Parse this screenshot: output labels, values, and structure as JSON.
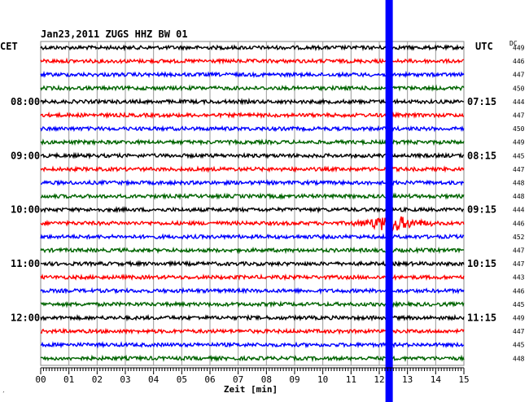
{
  "chart_data": {
    "type": "line",
    "title": "Jan23,2011   ZUGS HHZ BW 01",
    "left_zone": "CET",
    "right_zone": "UTC",
    "dc_header": "DC",
    "xlabel": "Zeit [min]",
    "x_ticks": [
      "00",
      "01",
      "02",
      "03",
      "04",
      "05",
      "06",
      "07",
      "08",
      "09",
      "10",
      "11",
      "12",
      "13",
      "14",
      "15"
    ],
    "xlim": [
      0,
      15
    ],
    "trace_colors": [
      "#000000",
      "#ff0000",
      "#0000ff",
      "#006400"
    ],
    "left_labels": [
      {
        "row": 4,
        "text": "08:00"
      },
      {
        "row": 8,
        "text": "09:00"
      },
      {
        "row": 12,
        "text": "10:00"
      },
      {
        "row": 16,
        "text": "11:00"
      },
      {
        "row": 20,
        "text": "12:00"
      }
    ],
    "right_labels": [
      {
        "row": 4,
        "text": "07:15"
      },
      {
        "row": 8,
        "text": "08:15"
      },
      {
        "row": 12,
        "text": "09:15"
      },
      {
        "row": 16,
        "text": "10:15"
      },
      {
        "row": 20,
        "text": "11:15"
      }
    ],
    "dc_values": [
      "449",
      "446",
      "447",
      "450",
      "444",
      "447",
      "450",
      "449",
      "445",
      "447",
      "448",
      "448",
      "444",
      "446",
      "452",
      "447",
      "447",
      "443",
      "446",
      "445",
      "449",
      "447",
      "445",
      "448"
    ],
    "event": {
      "row": 13,
      "minute": 12.3
    },
    "marker": {
      "minute": 12.35,
      "color": "#0000ff"
    },
    "corner_mark": "′"
  }
}
